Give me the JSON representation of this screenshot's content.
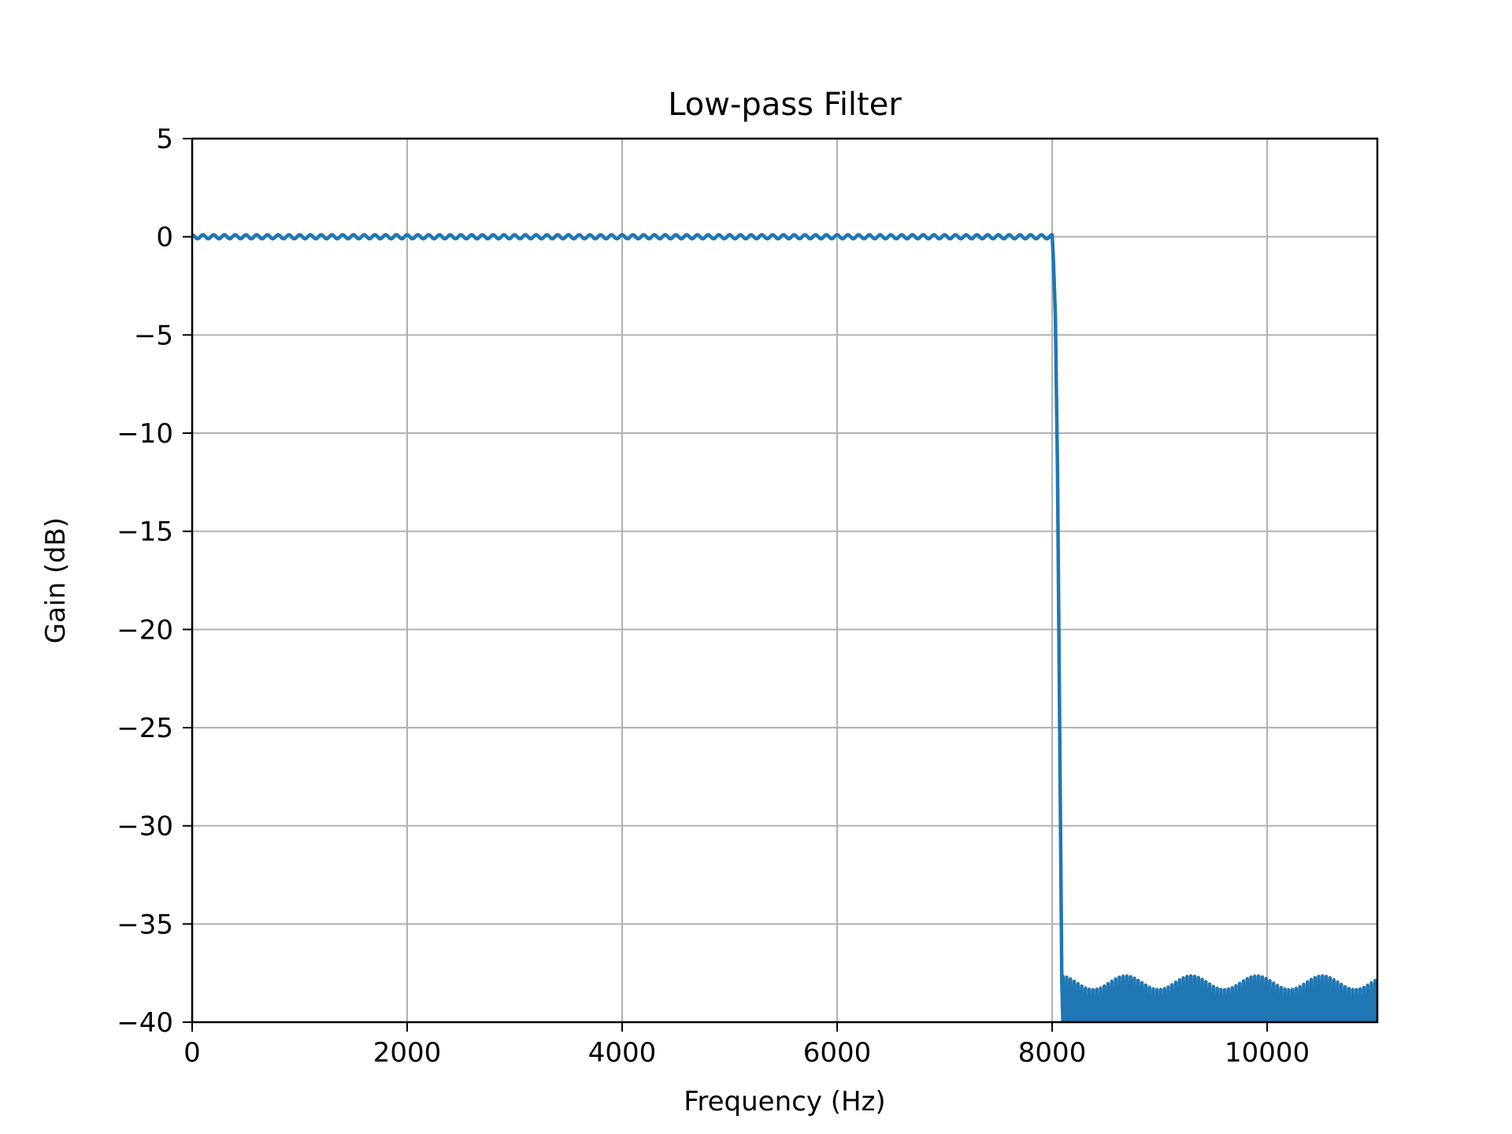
{
  "chart_data": {
    "type": "line",
    "title": "Low-pass Filter",
    "xlabel": "Frequency (Hz)",
    "ylabel": "Gain (dB)",
    "xlim": [
      0,
      11025
    ],
    "ylim": [
      -40,
      5
    ],
    "xticks": [
      0,
      2000,
      4000,
      6000,
      8000,
      10000
    ],
    "xtick_labels": [
      "0",
      "2000",
      "4000",
      "6000",
      "8000",
      "10000"
    ],
    "yticks": [
      5,
      0,
      -5,
      -10,
      -15,
      -20,
      -25,
      -30,
      -35,
      -40
    ],
    "ytick_labels": [
      "5",
      "0",
      "−5",
      "−10",
      "−15",
      "−20",
      "−25",
      "−30",
      "−35",
      "−40"
    ],
    "grid": true,
    "series": [
      {
        "color": "#1f77b4",
        "passband_end_hz": 8000,
        "passband_gain_db": 0,
        "passband_ripple_db": 0.1,
        "passband_ripple_period_hz": 100,
        "stopband_start_hz": 8100,
        "stopband_peak_db": -38,
        "stopband_ripple_period_hz": 35,
        "points": [
          [
            0,
            0
          ],
          [
            1000,
            0
          ],
          [
            2000,
            0
          ],
          [
            3000,
            0
          ],
          [
            4000,
            0
          ],
          [
            5000,
            0
          ],
          [
            6000,
            0
          ],
          [
            7000,
            0
          ],
          [
            8000,
            0
          ],
          [
            8010,
            -1
          ],
          [
            8030,
            -4
          ],
          [
            8050,
            -12
          ],
          [
            8070,
            -25
          ],
          [
            8090,
            -38
          ],
          [
            8100,
            -40
          ],
          [
            9000,
            -38
          ],
          [
            10000,
            -38
          ],
          [
            11025,
            -38
          ]
        ]
      }
    ]
  }
}
